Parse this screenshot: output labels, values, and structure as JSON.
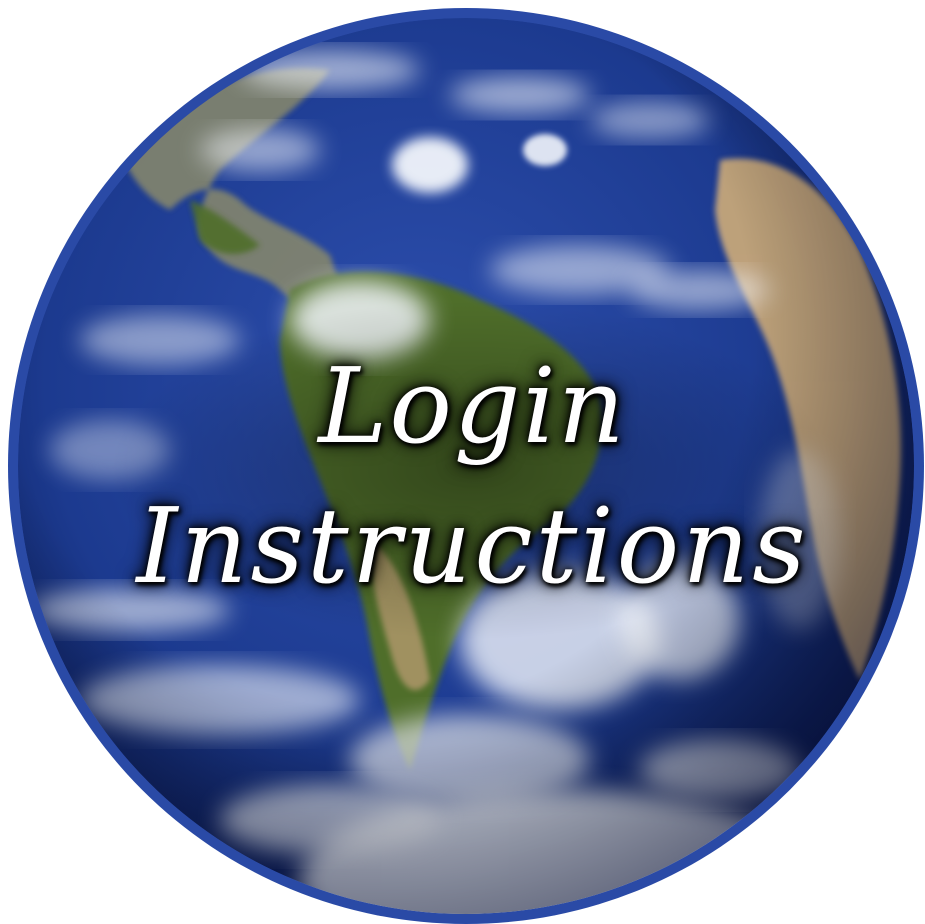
{
  "image": {
    "subject": "globe",
    "colors": {
      "ocean": "#1c3a8f",
      "ocean_dark": "#0d1f5c",
      "land_green": "#4f6e2a",
      "land_tan": "#c7a77a",
      "cloud": "#f2f5fb",
      "rim": "#2a4aa6",
      "text": "#ffffff"
    }
  },
  "title": {
    "line1": "Login",
    "line2": "Instructions"
  }
}
